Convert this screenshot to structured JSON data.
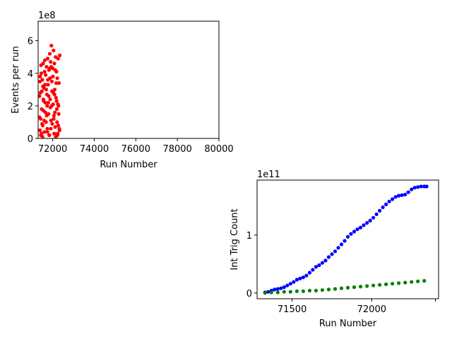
{
  "chart_data": [
    {
      "type": "scatter",
      "xlabel": "Run Number",
      "ylabel": "Events per run",
      "offset_label": "1e8",
      "xlim": [
        71300,
        80000
      ],
      "ylim": [
        0,
        7.2
      ],
      "xticks": [
        72000,
        74000,
        76000,
        78000,
        80000
      ],
      "xtick_labels": [
        "72000",
        "74000",
        "76000",
        "78000",
        "80000"
      ],
      "yticks": [
        0,
        2,
        4,
        6
      ],
      "ytick_labels": [
        "0",
        "2",
        "4",
        "6"
      ],
      "grid": false,
      "series": [
        {
          "color": "#ff0000",
          "x": [
            71360,
            71380,
            71400,
            71420,
            71440,
            71460,
            71480,
            71500,
            71520,
            71540,
            71560,
            71580,
            71600,
            71620,
            71640,
            71660,
            71680,
            71700,
            71720,
            71740,
            71760,
            71780,
            71800,
            71820,
            71840,
            71860,
            71880,
            71900,
            71920,
            71940,
            71960,
            71980,
            72000,
            72020,
            72040,
            72060,
            72080,
            72100,
            72120,
            72140,
            72160,
            72180,
            72200,
            72220,
            72240,
            72260,
            72280,
            72300,
            72320,
            72340,
            71370,
            71410,
            71450,
            71490,
            71530,
            71570,
            71610,
            71650,
            71690,
            71730,
            71770,
            71810,
            71850,
            71890,
            71930,
            71970,
            72010,
            72050,
            72090,
            72130,
            72170,
            72210,
            72250,
            72290,
            72330,
            71390,
            71470,
            71550,
            71630,
            71710,
            71790,
            71870,
            71950,
            72030,
            72110,
            72190,
            72270,
            71430,
            71590,
            71750,
            71910,
            72070,
            72230,
            71510,
            71830,
            72150
          ],
          "y": [
            2.6,
            0.5,
            3.8,
            1.2,
            4.5,
            0.3,
            2.9,
            3.6,
            0.8,
            4.6,
            1.7,
            3.1,
            0.4,
            4.8,
            2.2,
            3.9,
            1.0,
            4.4,
            2.7,
            0.6,
            4.9,
            3.3,
            1.5,
            4.2,
            0.2,
            5.2,
            2.4,
            4.7,
            1.1,
            5.7,
            3.5,
            0.9,
            4.3,
            2.1,
            5.4,
            1.4,
            4.6,
            3.0,
            0.7,
            5.0,
            2.5,
            4.1,
            1.8,
            3.7,
            0.3,
            4.9,
            2.0,
            3.4,
            0.6,
            5.1,
            1.3,
            2.8,
            4.0,
            0.9,
            3.2,
            2.3,
            4.1,
            1.6,
            3.0,
            2.0,
            3.6,
            2.6,
            4.3,
            1.9,
            4.4,
            2.9,
            3.8,
            1.2,
            2.7,
            4.2,
            3.4,
            1.0,
            2.1,
            1.5,
            0.5,
            3.5,
            1.8,
            2.4,
            3.3,
            1.4,
            2.2,
            3.7,
            2.0,
            2.8,
            1.6,
            2.3,
            0.8,
            0.2,
            1.1,
            0.4,
            0.6,
            0.3,
            0.2,
            0.1,
            0.2,
            0.1
          ]
        }
      ]
    },
    {
      "type": "scatter",
      "xlabel": "Run Number",
      "ylabel": "Int Trig Count",
      "offset_label": "1e11",
      "xlim": [
        71280,
        72420
      ],
      "ylim": [
        -0.1,
        1.95
      ],
      "xticks": [
        71500,
        72000
      ],
      "xtick_labels": [
        "71500",
        "72000"
      ],
      "minor_xticks": [
        72400
      ],
      "yticks": [
        0,
        1
      ],
      "ytick_labels": [
        "0",
        "1"
      ],
      "grid": false,
      "series": [
        {
          "color": "#0000ff",
          "x": [
            71330,
            71350,
            71370,
            71390,
            71410,
            71430,
            71450,
            71470,
            71490,
            71510,
            71530,
            71550,
            71570,
            71590,
            71610,
            71630,
            71650,
            71670,
            71690,
            71710,
            71730,
            71750,
            71770,
            71790,
            71810,
            71830,
            71850,
            71870,
            71890,
            71910,
            71930,
            71950,
            71970,
            71990,
            72010,
            72030,
            72050,
            72070,
            72090,
            72110,
            72130,
            72150,
            72170,
            72190,
            72210,
            72230,
            72250,
            72270,
            72290,
            72310,
            72330,
            72345
          ],
          "y": [
            0.01,
            0.02,
            0.04,
            0.06,
            0.07,
            0.08,
            0.1,
            0.13,
            0.16,
            0.19,
            0.23,
            0.25,
            0.27,
            0.3,
            0.35,
            0.4,
            0.45,
            0.48,
            0.52,
            0.56,
            0.62,
            0.67,
            0.72,
            0.78,
            0.84,
            0.9,
            0.97,
            1.02,
            1.06,
            1.1,
            1.13,
            1.17,
            1.21,
            1.25,
            1.3,
            1.36,
            1.42,
            1.48,
            1.53,
            1.58,
            1.62,
            1.66,
            1.68,
            1.69,
            1.7,
            1.74,
            1.79,
            1.82,
            1.83,
            1.84,
            1.84,
            1.84
          ]
        },
        {
          "color": "#008000",
          "x": [
            71330,
            71370,
            71410,
            71450,
            71490,
            71530,
            71570,
            71610,
            71650,
            71690,
            71730,
            71770,
            71810,
            71850,
            71890,
            71930,
            71970,
            72010,
            72050,
            72090,
            72130,
            72170,
            72210,
            72250,
            72290,
            72330
          ],
          "y": [
            0.0,
            0.01,
            0.01,
            0.02,
            0.02,
            0.03,
            0.03,
            0.04,
            0.04,
            0.05,
            0.06,
            0.07,
            0.08,
            0.09,
            0.1,
            0.11,
            0.12,
            0.13,
            0.14,
            0.15,
            0.16,
            0.17,
            0.18,
            0.19,
            0.2,
            0.21
          ]
        }
      ]
    }
  ]
}
